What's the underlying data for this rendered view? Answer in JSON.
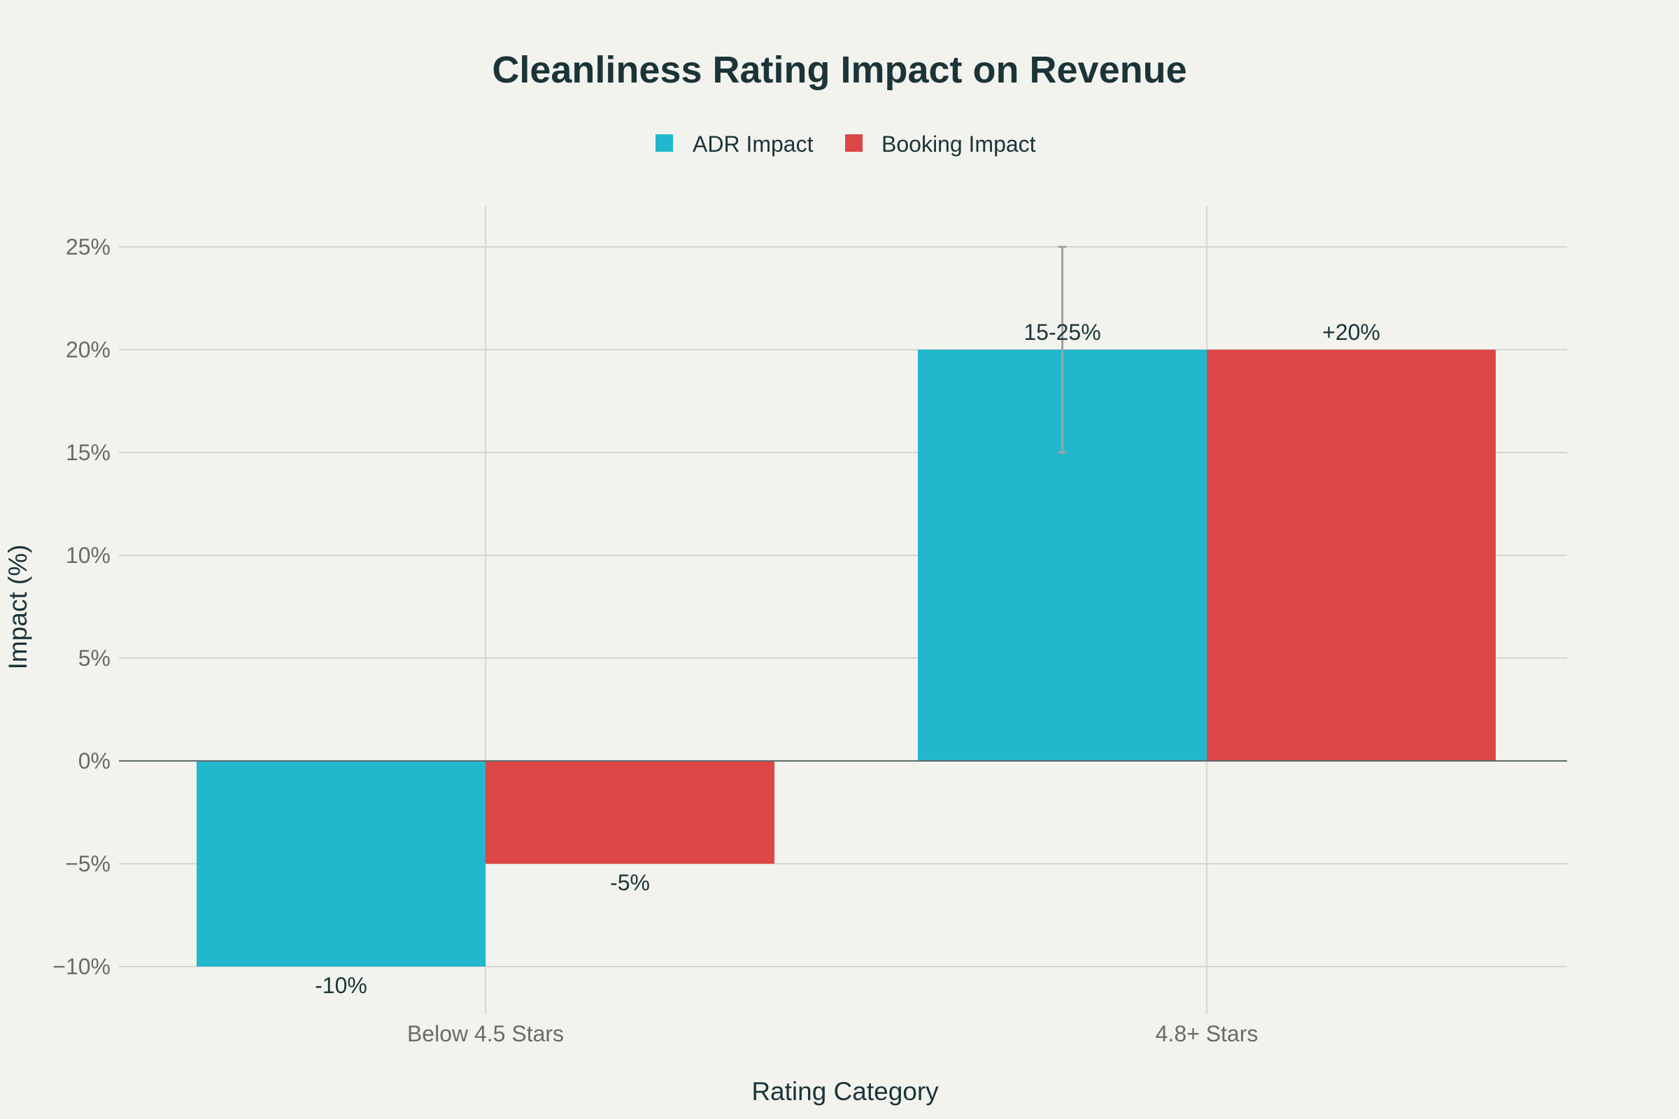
{
  "chart_data": {
    "type": "bar",
    "title": "Cleanliness Rating Impact on Revenue",
    "xlabel": "Rating Category",
    "ylabel": "Impact (%)",
    "categories": [
      "Below 4.5 Stars",
      "4.8+ Stars"
    ],
    "ylim": [
      -12,
      27
    ],
    "yticks": [
      -10,
      -5,
      0,
      5,
      10,
      15,
      20,
      25
    ],
    "ytick_labels": [
      "−10%",
      "−5%",
      "0%",
      "5%",
      "10%",
      "15%",
      "20%",
      "25%"
    ],
    "legend_position": "top-center",
    "grid": true,
    "series": [
      {
        "name": "ADR Impact",
        "color": "#21b8cd",
        "values": [
          -10,
          20
        ],
        "labels": [
          "-10%",
          "15-25%"
        ],
        "error_range": [
          null,
          [
            15,
            25
          ]
        ]
      },
      {
        "name": "Booking Impact",
        "color": "#dc4646",
        "values": [
          -5,
          20
        ],
        "labels": [
          "-5%",
          "+20%"
        ],
        "error_range": [
          null,
          null
        ]
      }
    ]
  }
}
